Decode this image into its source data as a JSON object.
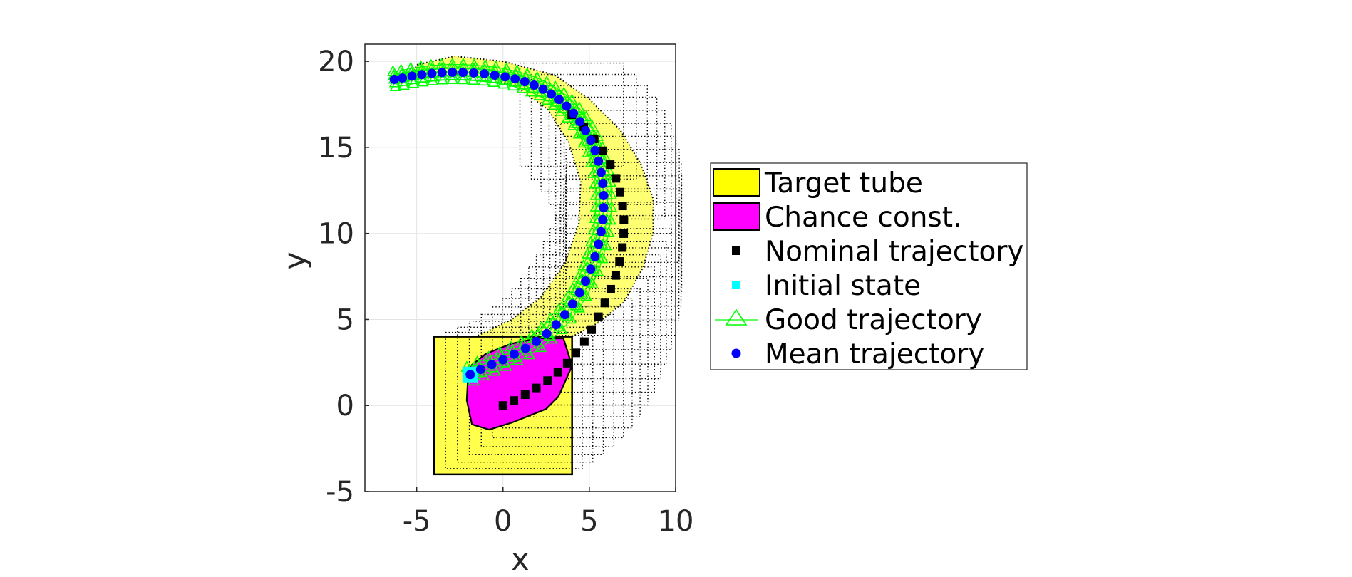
{
  "chart_data": {
    "type": "scatter",
    "title": "",
    "xlabel": "x",
    "ylabel": "y",
    "xlim": [
      -8,
      10
    ],
    "ylim": [
      -5,
      21
    ],
    "xticks": [
      -5,
      0,
      5,
      10
    ],
    "yticks": [
      -5,
      0,
      5,
      10,
      15,
      20
    ],
    "xtick_labels": [
      "-5",
      "0",
      "5",
      "10"
    ],
    "ytick_labels": [
      "-5",
      "0",
      "5",
      "10",
      "15",
      "20"
    ],
    "grid": true,
    "legend_position": "right, outside the axes",
    "legend": [
      {
        "label": "Target tube",
        "marker": "filled-box",
        "color": "#ffff00"
      },
      {
        "label": "Chance const.",
        "marker": "filled-box",
        "color": "#ff00ff"
      },
      {
        "label": "Nominal trajectory",
        "marker": "square",
        "color": "#000000"
      },
      {
        "label": "Initial state",
        "marker": "square",
        "color": "#00ffff"
      },
      {
        "label": "Good trajectory",
        "marker": "triangle-line",
        "color": "#00ff00"
      },
      {
        "label": "Mean trajectory",
        "marker": "circle",
        "color": "#0000ff"
      }
    ],
    "target_tube_initial_set": {
      "x": [
        -4,
        4
      ],
      "y": [
        -4,
        4
      ]
    },
    "target_tube_outer_arc": [
      [
        4,
        4
      ],
      [
        5.5,
        4.8
      ],
      [
        7,
        6
      ],
      [
        8.1,
        8
      ],
      [
        8.7,
        10
      ],
      [
        8.7,
        12
      ],
      [
        8,
        14
      ],
      [
        6.8,
        16
      ],
      [
        5,
        17.8
      ],
      [
        3,
        19.2
      ],
      [
        0,
        20
      ],
      [
        -2.8,
        20.3
      ],
      [
        -5,
        19.8
      ]
    ],
    "target_tube_inner_arc": [
      [
        -1.6,
        4
      ],
      [
        0.5,
        5
      ],
      [
        2.2,
        6.3
      ],
      [
        3.6,
        8.3
      ],
      [
        4.4,
        10.6
      ],
      [
        4.5,
        13
      ],
      [
        3.8,
        15.3
      ],
      [
        2.6,
        17.2
      ],
      [
        0.8,
        18.5
      ],
      [
        -1.3,
        19.2
      ],
      [
        -3.5,
        19.3
      ],
      [
        -5.2,
        19.3
      ]
    ],
    "chance_constraint_polygon": [
      [
        -2,
        2.2
      ],
      [
        -1,
        3
      ],
      [
        0.5,
        3.6
      ],
      [
        2,
        3.9
      ],
      [
        3.5,
        3.9
      ],
      [
        4,
        2.3
      ],
      [
        3.2,
        0.5
      ],
      [
        2.5,
        -0.2
      ],
      [
        0.5,
        -1
      ],
      [
        -0.8,
        -1.4
      ],
      [
        -1.8,
        -1.1
      ],
      [
        -2.1,
        0.3
      ]
    ],
    "nominal_trajectory": {
      "x": [
        0,
        0.63,
        1.28,
        1.93,
        2.58,
        3.18,
        3.72,
        4.22,
        4.71,
        5.13,
        5.53,
        5.9,
        6.24,
        6.53,
        6.75,
        6.91,
        6.99,
        7.0,
        6.93,
        6.78,
        6.54,
        6.21,
        5.79,
        5.28,
        4.68,
        3.98
      ],
      "y": [
        0,
        0.29,
        0.63,
        1.02,
        1.45,
        1.93,
        2.46,
        3.06,
        3.71,
        4.41,
        5.16,
        5.96,
        6.76,
        7.56,
        8.37,
        9.18,
        9.99,
        10.8,
        11.6,
        12.4,
        13.2,
        14.0,
        14.8,
        15.5,
        16.2,
        16.9
      ]
    },
    "initial_state": {
      "x": -1.9,
      "y": 1.8
    },
    "mean_trajectory": {
      "x": [
        -1.9,
        -1.3,
        -0.65,
        0.0,
        0.65,
        1.3,
        1.93,
        2.53,
        3.08,
        3.58,
        4.03,
        4.43,
        4.78,
        5.08,
        5.33,
        5.53,
        5.68,
        5.78,
        5.83,
        5.83,
        5.78,
        5.68,
        5.53,
        5.33,
        5.08,
        4.78,
        4.45,
        4.08,
        3.68,
        3.25,
        2.8,
        2.32,
        1.8,
        1.26,
        0.7,
        0.12,
        -0.48,
        -1.08,
        -1.7,
        -2.32,
        -2.93,
        -3.53,
        -4.12,
        -4.7,
        -5.27,
        -5.83,
        -6.3
      ],
      "y": [
        1.8,
        2.1,
        2.38,
        2.66,
        2.98,
        3.32,
        3.72,
        4.18,
        4.7,
        5.28,
        5.9,
        6.55,
        7.23,
        7.93,
        8.65,
        9.37,
        10.1,
        10.8,
        11.5,
        12.2,
        12.9,
        13.55,
        14.2,
        14.82,
        15.42,
        15.98,
        16.5,
        16.98,
        17.4,
        17.78,
        18.1,
        18.38,
        18.62,
        18.82,
        18.98,
        19.1,
        19.2,
        19.28,
        19.33,
        19.36,
        19.37,
        19.35,
        19.3,
        19.23,
        19.14,
        19.03,
        18.95
      ]
    },
    "good_trajectory_band_offsets": [
      -0.45,
      -0.22,
      0.0,
      0.22,
      0.45
    ]
  }
}
